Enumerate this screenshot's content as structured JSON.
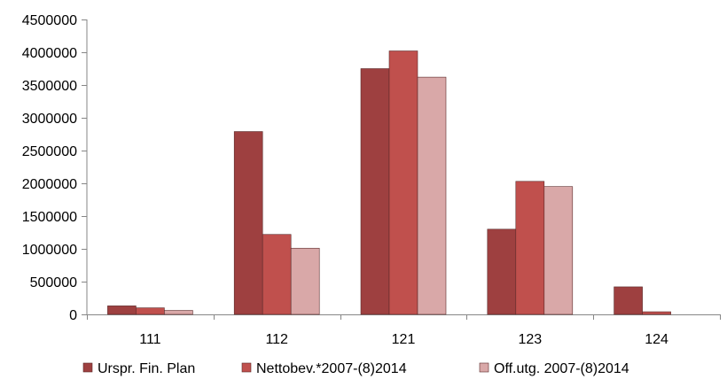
{
  "chart_data": {
    "type": "bar",
    "title": "",
    "xlabel": "",
    "ylabel": "",
    "categories": [
      "111",
      "112",
      "121",
      "123",
      "124"
    ],
    "series": [
      {
        "name": "Urspr. Fin. Plan",
        "color": "#9e4040",
        "values": [
          130000,
          2790000,
          3750000,
          1300000,
          420000
        ]
      },
      {
        "name": "Nettobev.*2007-(8)2014",
        "color": "#c0504d",
        "values": [
          100000,
          1220000,
          4020000,
          2030000,
          40000
        ]
      },
      {
        "name": "Off.utg. 2007-(8)2014",
        "color": "#d9a8a8",
        "values": [
          60000,
          1010000,
          3620000,
          1950000,
          0
        ]
      }
    ],
    "ylim": [
      0,
      4500000
    ],
    "yticks": [
      "0",
      "500000",
      "1000000",
      "1500000",
      "2000000",
      "2500000",
      "3000000",
      "3500000",
      "4000000",
      "4500000"
    ],
    "grid": false,
    "legend_position": "bottom"
  }
}
